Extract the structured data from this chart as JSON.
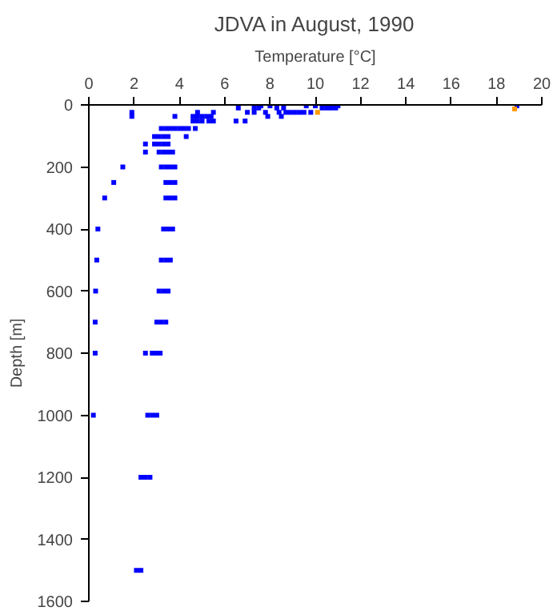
{
  "chart_data": {
    "type": "scatter",
    "title": "JDVA in August, 1990",
    "xlabel": "Temperature [°C]",
    "ylabel": "Depth [m]",
    "xlim": [
      0,
      20
    ],
    "xticks": [
      0,
      2,
      4,
      6,
      8,
      10,
      12,
      14,
      16,
      18,
      20
    ],
    "ylim": [
      1600,
      0
    ],
    "yticks": [
      0,
      200,
      400,
      600,
      800,
      1000,
      1200,
      1400,
      1600
    ],
    "grid": false,
    "marker": "square",
    "series": [
      {
        "color": "#0000ff",
        "x": [
          7.6,
          8.0,
          9.6,
          10.0,
          10.8,
          11.0,
          18.9,
          6.6,
          7.3,
          7.5,
          8.3,
          8.6,
          10.3,
          10.5,
          10.7,
          10.9,
          1.9,
          4.8,
          5.5,
          7.0,
          7.3,
          7.8,
          8.4,
          8.7,
          8.9,
          9.1,
          9.3,
          9.5,
          9.8,
          1.9,
          3.8,
          4.6,
          4.8,
          5.0,
          5.2,
          5.4,
          7.9,
          8.5,
          4.6,
          4.8,
          5.0,
          5.3,
          5.5,
          6.5,
          6.9,
          3.2,
          3.4,
          3.6,
          3.8,
          4.0,
          4.2,
          4.4,
          4.7,
          2.9,
          3.1,
          3.3,
          3.5,
          4.3,
          2.5,
          2.9,
          3.1,
          3.3,
          3.5,
          2.5,
          3.1,
          3.3,
          3.5,
          3.7,
          1.5,
          3.2,
          3.4,
          3.6,
          3.8,
          1.1,
          3.4,
          3.6,
          3.8,
          0.7,
          3.4,
          3.6,
          3.8,
          0.4,
          3.3,
          3.5,
          3.7,
          0.35,
          3.2,
          3.4,
          3.6,
          0.3,
          3.1,
          3.3,
          3.5,
          0.28,
          3.0,
          3.2,
          3.4,
          0.28,
          2.5,
          2.8,
          3.0,
          3.15,
          0.2,
          2.6,
          2.8,
          3.0,
          2.3,
          2.5,
          2.7,
          2.1,
          2.3
        ],
        "values": [
          3,
          3,
          3,
          3,
          3,
          3,
          3,
          10,
          10,
          10,
          10,
          10,
          10,
          10,
          10,
          10,
          24,
          24,
          24,
          24,
          24,
          24,
          24,
          24,
          24,
          24,
          24,
          24,
          24,
          37,
          37,
          37,
          37,
          37,
          37,
          37,
          37,
          37,
          52,
          52,
          52,
          52,
          52,
          52,
          52,
          76,
          76,
          76,
          76,
          76,
          76,
          76,
          76,
          102,
          102,
          102,
          102,
          102,
          126,
          126,
          126,
          126,
          126,
          152,
          152,
          152,
          152,
          152,
          200,
          200,
          200,
          200,
          200,
          250,
          250,
          250,
          250,
          300,
          300,
          300,
          300,
          400,
          400,
          400,
          400,
          500,
          500,
          500,
          500,
          600,
          600,
          600,
          600,
          700,
          700,
          700,
          700,
          800,
          800,
          800,
          800,
          800,
          1000,
          1000,
          1000,
          1000,
          1200,
          1200,
          1200,
          1500,
          1500
        ]
      },
      {
        "color": "#ff9900",
        "x": [
          10.1,
          18.8
        ],
        "values": [
          24,
          13
        ]
      }
    ]
  }
}
